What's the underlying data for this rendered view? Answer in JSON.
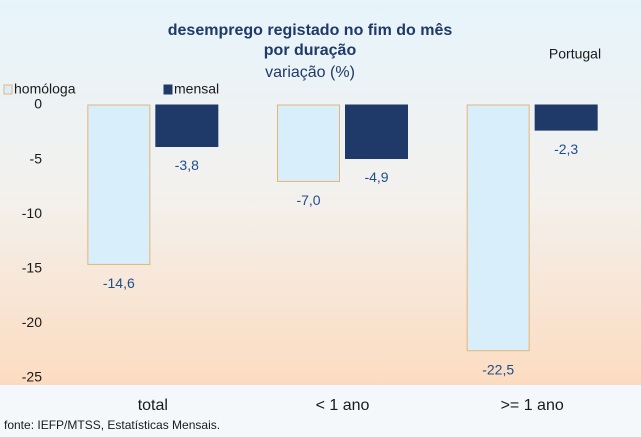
{
  "chart_data": {
    "type": "bar",
    "title": [
      "desemprego registado no fim do mês",
      "por duração"
    ],
    "subtitle": "variação (%)",
    "annotation": "Portugal",
    "source": "fonte: IEFP/MTSS, Estatísticas Mensais.",
    "categories": [
      "total",
      "< 1 ano",
      ">= 1 ano"
    ],
    "series": [
      {
        "name": "homóloga",
        "color": "#d9eefb",
        "edge": "#e6b477",
        "values": [
          -14.6,
          -7.0,
          -22.5
        ],
        "value_labels": [
          "-14,6",
          "-7,0",
          "-22,5"
        ]
      },
      {
        "name": "mensal",
        "color": "#1f3a68",
        "edge": "#1f3a68",
        "values": [
          -3.8,
          -4.9,
          -2.3
        ],
        "value_labels": [
          "-3,8",
          "-4,9",
          "-2,3"
        ]
      }
    ],
    "ylim": [
      -25,
      0
    ],
    "yticks": [
      0,
      -5,
      -10,
      -15,
      -20,
      -25
    ],
    "grid": false
  }
}
